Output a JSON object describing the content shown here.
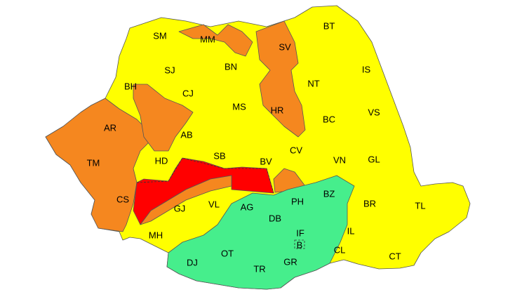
{
  "map": {
    "colors": {
      "yellow": "#ffff00",
      "orange": "#f5871f",
      "red": "#ff0000",
      "green": "#46ee8c"
    },
    "counties": [
      {
        "code": "SM",
        "level": "yellow"
      },
      {
        "code": "MM",
        "level": "orange"
      },
      {
        "code": "SV",
        "level": "orange"
      },
      {
        "code": "BT",
        "level": "yellow"
      },
      {
        "code": "SJ",
        "level": "yellow"
      },
      {
        "code": "BN",
        "level": "yellow"
      },
      {
        "code": "IS",
        "level": "yellow"
      },
      {
        "code": "BH",
        "level": "yellow"
      },
      {
        "code": "CJ",
        "level": "yellow"
      },
      {
        "code": "NT",
        "level": "yellow"
      },
      {
        "code": "MS",
        "level": "yellow"
      },
      {
        "code": "HR",
        "level": "orange"
      },
      {
        "code": "VS",
        "level": "yellow"
      },
      {
        "code": "AR",
        "level": "orange"
      },
      {
        "code": "AB",
        "level": "orange"
      },
      {
        "code": "BC",
        "level": "yellow"
      },
      {
        "code": "CV",
        "level": "yellow"
      },
      {
        "code": "TM",
        "level": "orange"
      },
      {
        "code": "HD",
        "level": "yellow"
      },
      {
        "code": "SB",
        "level": "yellow"
      },
      {
        "code": "BV",
        "level": "yellow"
      },
      {
        "code": "VN",
        "level": "yellow"
      },
      {
        "code": "GL",
        "level": "yellow"
      },
      {
        "code": "CS",
        "level": "orange"
      },
      {
        "code": "GJ",
        "level": "yellow"
      },
      {
        "code": "VL",
        "level": "yellow"
      },
      {
        "code": "AG",
        "level": "green"
      },
      {
        "code": "PH",
        "level": "green"
      },
      {
        "code": "BZ",
        "level": "green"
      },
      {
        "code": "BR",
        "level": "yellow"
      },
      {
        "code": "TL",
        "level": "yellow"
      },
      {
        "code": "DB",
        "level": "green"
      },
      {
        "code": "IF",
        "level": "green"
      },
      {
        "code": "IL",
        "level": "yellow"
      },
      {
        "code": "MH",
        "level": "yellow"
      },
      {
        "code": "B",
        "level": "green"
      },
      {
        "code": "CL",
        "level": "yellow"
      },
      {
        "code": "DJ",
        "level": "green"
      },
      {
        "code": "OT",
        "level": "green"
      },
      {
        "code": "TR",
        "level": "green"
      },
      {
        "code": "GR",
        "level": "green"
      },
      {
        "code": "CT",
        "level": "yellow"
      }
    ]
  }
}
